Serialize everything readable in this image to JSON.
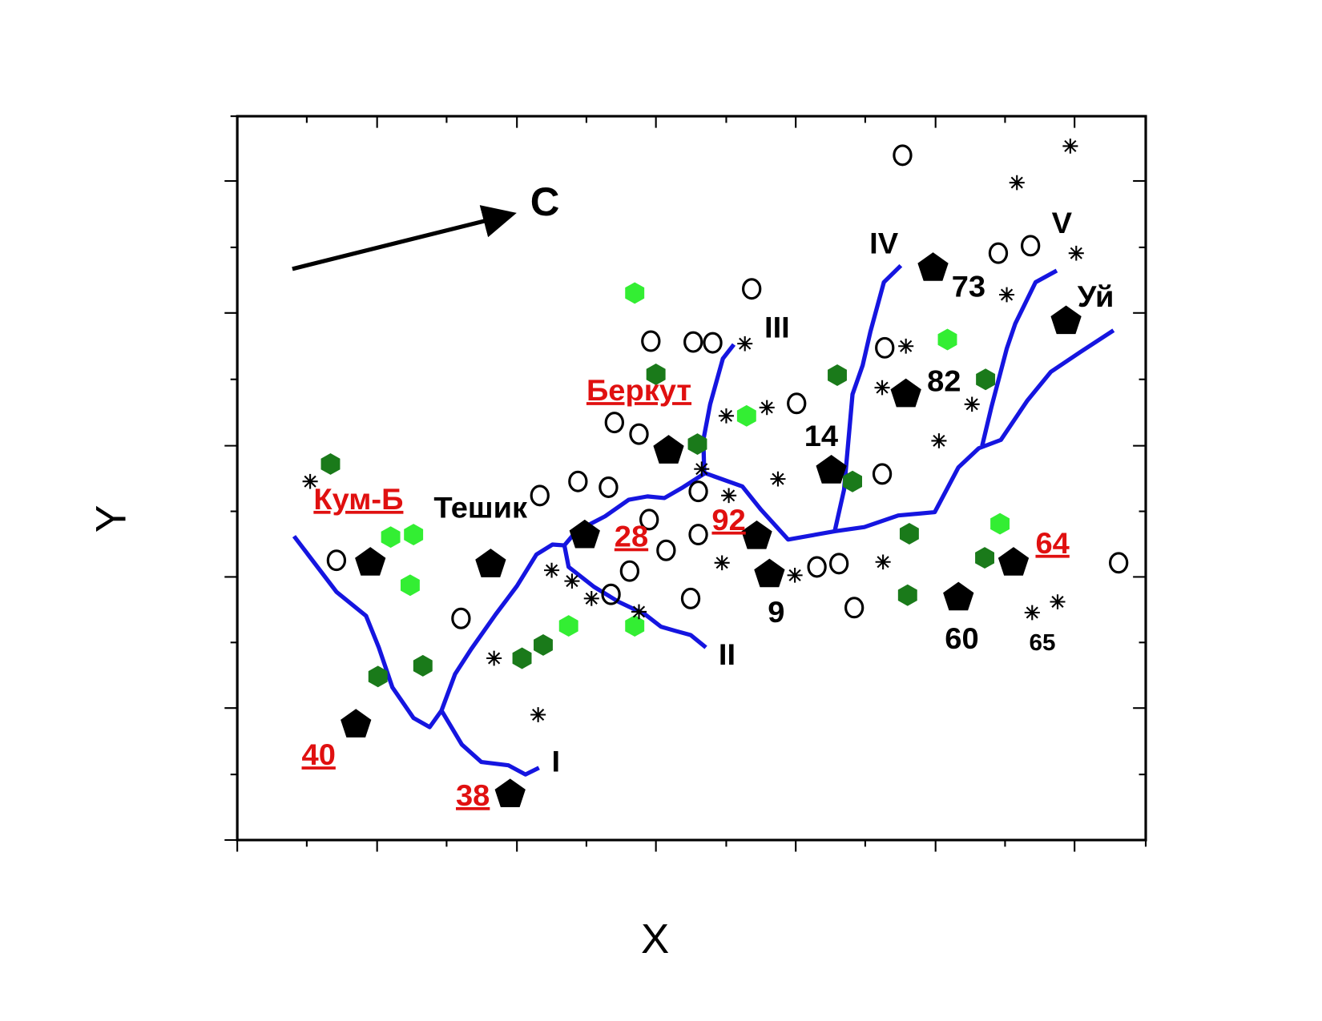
{
  "axes": {
    "x_label": "X",
    "y_label": "Y"
  },
  "north_arrow": {
    "label": "С"
  },
  "faults": [
    "I",
    "II",
    "III",
    "IV",
    "V"
  ],
  "black_labels": [
    "Тешик",
    "14",
    "82",
    "73",
    "Уй",
    "9",
    "60",
    "65"
  ],
  "red_labels": [
    "Кум-Б",
    "Беркут",
    "28",
    "92",
    "64",
    "40",
    "38"
  ]
}
